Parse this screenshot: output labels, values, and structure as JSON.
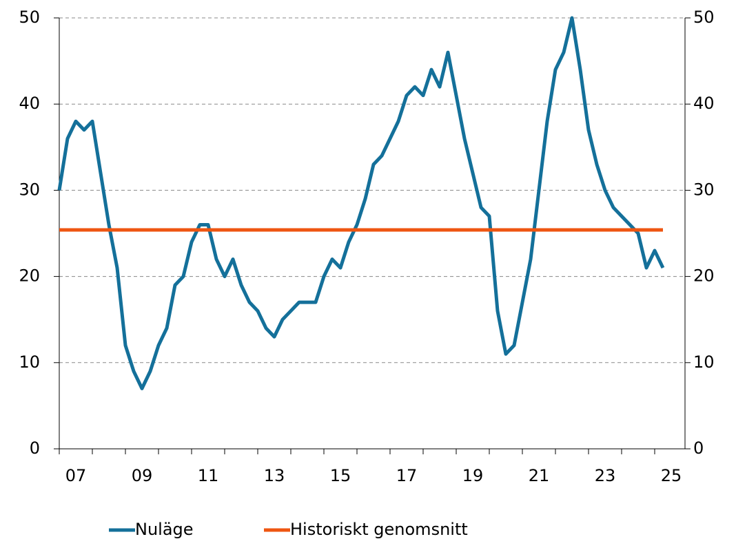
{
  "chart_data": {
    "type": "line",
    "x": [
      2007,
      2007.25,
      2007.5,
      2007.75,
      2008,
      2008.25,
      2008.5,
      2008.75,
      2009,
      2009.25,
      2009.5,
      2009.75,
      2010,
      2010.25,
      2010.5,
      2010.75,
      2011,
      2011.25,
      2011.5,
      2011.75,
      2012,
      2012.25,
      2012.5,
      2012.75,
      2013,
      2013.25,
      2013.5,
      2013.75,
      2014,
      2014.25,
      2014.5,
      2014.75,
      2015,
      2015.25,
      2015.5,
      2015.75,
      2016,
      2016.25,
      2016.5,
      2016.75,
      2017,
      2017.25,
      2017.5,
      2017.75,
      2018,
      2018.25,
      2018.5,
      2018.75,
      2019,
      2019.25,
      2019.5,
      2019.75,
      2020,
      2020.25,
      2020.5,
      2020.75,
      2021,
      2021.25,
      2021.5,
      2021.75,
      2022,
      2022.25,
      2022.5,
      2022.75,
      2023,
      2023.25,
      2023.5,
      2023.75,
      2024,
      2024.25,
      2024.5,
      2024.75,
      2025,
      2025.25
    ],
    "series": [
      {
        "name": "Nuläge",
        "color": "#14709a",
        "values": [
          30,
          36,
          38,
          37,
          38,
          32,
          26,
          21,
          12,
          9,
          7,
          9,
          12,
          14,
          19,
          20,
          24,
          26,
          26,
          22,
          20,
          22,
          19,
          17,
          16,
          14,
          13,
          15,
          16,
          17,
          17,
          17,
          20,
          22,
          21,
          24,
          26,
          29,
          33,
          34,
          36,
          38,
          41,
          42,
          41,
          44,
          42,
          46,
          41,
          36,
          32,
          28,
          27,
          16,
          11,
          12,
          17,
          22,
          30,
          38,
          44,
          46,
          50,
          44,
          37,
          33,
          30,
          28,
          27,
          26,
          25,
          21,
          23,
          21
        ]
      },
      {
        "name": "Historiskt genomsnitt",
        "color": "#ee5511",
        "values": [
          25.4,
          25.4,
          25.4,
          25.4,
          25.4,
          25.4,
          25.4,
          25.4,
          25.4,
          25.4,
          25.4,
          25.4,
          25.4,
          25.4,
          25.4,
          25.4,
          25.4,
          25.4,
          25.4,
          25.4,
          25.4,
          25.4,
          25.4,
          25.4,
          25.4,
          25.4,
          25.4,
          25.4,
          25.4,
          25.4,
          25.4,
          25.4,
          25.4,
          25.4,
          25.4,
          25.4,
          25.4,
          25.4,
          25.4,
          25.4,
          25.4,
          25.4,
          25.4,
          25.4,
          25.4,
          25.4,
          25.4,
          25.4,
          25.4,
          25.4,
          25.4,
          25.4,
          25.4,
          25.4,
          25.4,
          25.4,
          25.4,
          25.4,
          25.4,
          25.4,
          25.4,
          25.4,
          25.4,
          25.4,
          25.4,
          25.4,
          25.4,
          25.4,
          25.4,
          25.4,
          25.4,
          25.4,
          25.4,
          25.4
        ]
      }
    ],
    "xlim": [
      2007,
      2025.9167
    ],
    "xticks": [
      {
        "value": 2007.5,
        "label": "07"
      },
      {
        "value": 2009.5,
        "label": "09"
      },
      {
        "value": 2011.5,
        "label": "11"
      },
      {
        "value": 2013.5,
        "label": "13"
      },
      {
        "value": 2015.5,
        "label": "15"
      },
      {
        "value": 2017.5,
        "label": "17"
      },
      {
        "value": 2019.5,
        "label": "19"
      },
      {
        "value": 2021.5,
        "label": "21"
      },
      {
        "value": 2023.5,
        "label": "23"
      },
      {
        "value": 2025.5,
        "label": "25"
      }
    ],
    "xtick_marks": [
      2007,
      2008,
      2009,
      2010,
      2011,
      2012,
      2013,
      2014,
      2015,
      2016,
      2017,
      2018,
      2019,
      2020,
      2021,
      2022,
      2023,
      2024,
      2025
    ],
    "ylim": [
      0,
      50
    ],
    "yticks": [
      0,
      10,
      20,
      30,
      40,
      50
    ],
    "y2lim": [
      0,
      50
    ],
    "y2ticks": [
      0,
      10,
      20,
      30,
      40,
      50
    ],
    "grid": true,
    "legend": "bottom"
  }
}
